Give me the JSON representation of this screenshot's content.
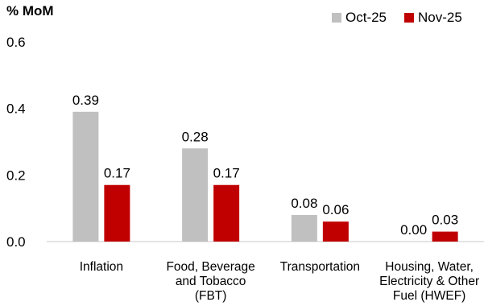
{
  "chart_data": {
    "type": "bar",
    "ylabel": "% MoM",
    "ylim": [
      0,
      0.6
    ],
    "yticks": [
      "0.0",
      "0.2",
      "0.4",
      "0.6"
    ],
    "categories": [
      [
        "Inflation"
      ],
      [
        "Food, Beverage",
        "and Tobacco",
        "(FBT)"
      ],
      [
        "Transportation"
      ],
      [
        "Housing, Water,",
        "Electricity & Other",
        "Fuel (HWEF)"
      ]
    ],
    "series": [
      {
        "name": "Oct-25",
        "color": "#c0c0c0",
        "values": [
          0.39,
          0.28,
          0.08,
          0.0
        ],
        "labels": [
          "0.39",
          "0.28",
          "0.08",
          "0.00"
        ]
      },
      {
        "name": "Nov-25",
        "color": "#c00000",
        "values": [
          0.17,
          0.17,
          0.06,
          0.03
        ],
        "labels": [
          "0.17",
          "0.17",
          "0.06",
          "0.03"
        ]
      }
    ],
    "grid": false,
    "legend_position": "top-right"
  }
}
